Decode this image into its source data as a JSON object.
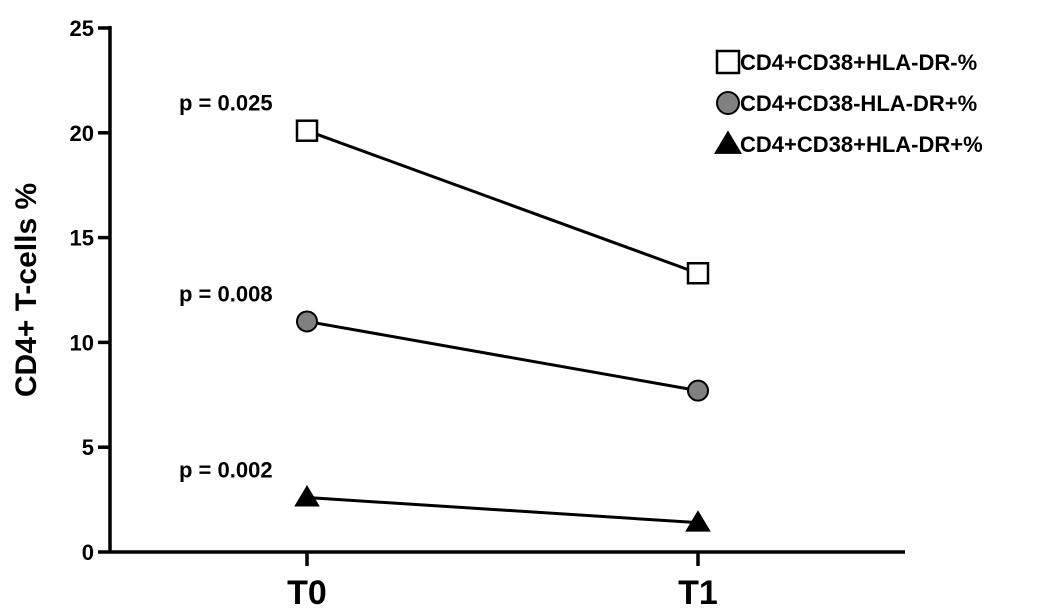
{
  "chart_data": {
    "type": "line",
    "ylabel": "CD4+ T-cells %",
    "xlabel": "",
    "categories": [
      "T0",
      "T1"
    ],
    "ylim": [
      0,
      25
    ],
    "yticks": [
      0,
      5,
      10,
      15,
      20,
      25
    ],
    "series": [
      {
        "name": "CD4+CD38+HLA-DR-%",
        "marker": "square-open",
        "color": "#ffffff",
        "values": [
          20.1,
          13.3
        ],
        "pvalue": "p = 0.025"
      },
      {
        "name": "CD4+CD38-HLA-DR+%",
        "marker": "circle",
        "color": "#808080",
        "values": [
          11.0,
          7.7
        ],
        "pvalue": "p = 0.008"
      },
      {
        "name": "CD4+CD38+HLA-DR+%",
        "marker": "triangle",
        "color": "#000000",
        "values": [
          2.6,
          1.4
        ],
        "pvalue": "p = 0.002"
      }
    ],
    "legend_position": "top-right",
    "grid": false
  }
}
